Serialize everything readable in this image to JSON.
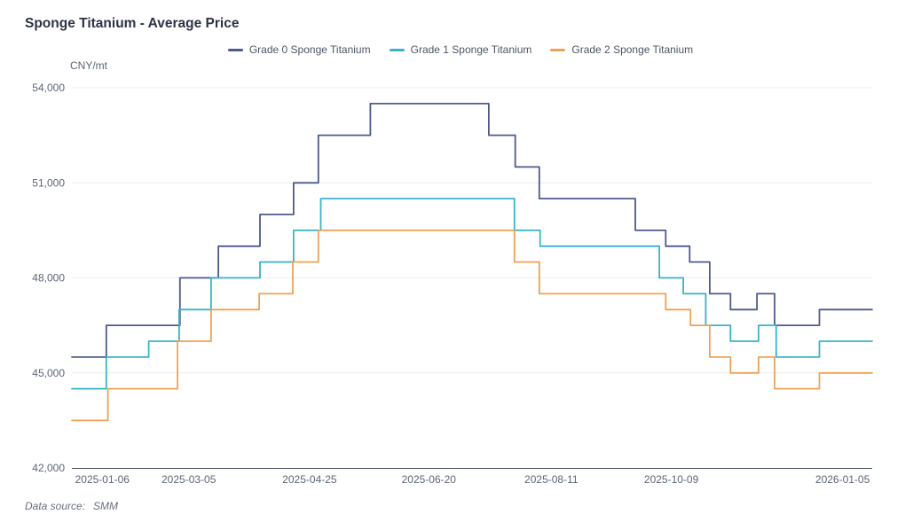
{
  "header": {
    "title": "Sponge Titanium - Average Price"
  },
  "legend": {
    "items": [
      {
        "label": "Grade 0 Sponge Titanium",
        "color": "#4d5a8c"
      },
      {
        "label": "Grade 1 Sponge Titanium",
        "color": "#38b4c8"
      },
      {
        "label": "Grade 2 Sponge Titanium",
        "color": "#f0a155"
      }
    ]
  },
  "footer": {
    "label": "Data source:",
    "value": "SMM"
  },
  "chart_data": {
    "type": "line",
    "step": true,
    "title": "Sponge Titanium - Average Price",
    "unit_label": "CNY/mt",
    "ylabel": "CNY/mt",
    "xlabel": "",
    "ylim": [
      42000,
      54000
    ],
    "grid": true,
    "legend_position": "top-center",
    "x_range": [
      "2025-01-06",
      "2026-01-05"
    ],
    "y_ticks": [
      {
        "value": 54000,
        "label": "54,000"
      },
      {
        "value": 51000,
        "label": "51,000"
      },
      {
        "value": 48000,
        "label": "48,000"
      },
      {
        "value": 45000,
        "label": "45,000"
      },
      {
        "value": 42000,
        "label": "42,000"
      }
    ],
    "x_ticks": [
      {
        "label": "2025-01-06",
        "pos": 0.038
      },
      {
        "label": "2025-03-05",
        "pos": 0.146
      },
      {
        "label": "2025-04-25",
        "pos": 0.297
      },
      {
        "label": "2025-06-20",
        "pos": 0.446
      },
      {
        "label": "2025-08-11",
        "pos": 0.599
      },
      {
        "label": "2025-10-09",
        "pos": 0.749
      },
      {
        "label": "2026-01-05",
        "pos": 0.963
      }
    ],
    "segments_format": "[x_start_fraction_of_axis, x_end_fraction_of_axis, price_cny_per_mt]",
    "series": [
      {
        "name": "Grade 0 Sponge Titanium",
        "color": "#4d5a8c",
        "segments": [
          [
            0.0,
            0.043,
            45500
          ],
          [
            0.043,
            0.135,
            46500
          ],
          [
            0.135,
            0.183,
            48000
          ],
          [
            0.183,
            0.235,
            49000
          ],
          [
            0.235,
            0.277,
            50000
          ],
          [
            0.277,
            0.308,
            51000
          ],
          [
            0.308,
            0.373,
            52500
          ],
          [
            0.373,
            0.521,
            53500
          ],
          [
            0.521,
            0.554,
            52500
          ],
          [
            0.554,
            0.584,
            51500
          ],
          [
            0.584,
            0.704,
            50500
          ],
          [
            0.704,
            0.742,
            49500
          ],
          [
            0.742,
            0.772,
            49000
          ],
          [
            0.772,
            0.797,
            48500
          ],
          [
            0.797,
            0.823,
            47500
          ],
          [
            0.823,
            0.856,
            47000
          ],
          [
            0.856,
            0.878,
            47500
          ],
          [
            0.878,
            0.934,
            46500
          ],
          [
            0.934,
            1.0,
            47000
          ]
        ]
      },
      {
        "name": "Grade 1 Sponge Titanium",
        "color": "#38b4c8",
        "segments": [
          [
            0.0,
            0.043,
            44500
          ],
          [
            0.043,
            0.096,
            45500
          ],
          [
            0.096,
            0.134,
            46000
          ],
          [
            0.134,
            0.174,
            47000
          ],
          [
            0.174,
            0.235,
            48000
          ],
          [
            0.235,
            0.277,
            48500
          ],
          [
            0.277,
            0.311,
            49500
          ],
          [
            0.311,
            0.553,
            50500
          ],
          [
            0.553,
            0.585,
            49500
          ],
          [
            0.585,
            0.734,
            49000
          ],
          [
            0.734,
            0.764,
            48000
          ],
          [
            0.764,
            0.792,
            47500
          ],
          [
            0.792,
            0.823,
            46500
          ],
          [
            0.823,
            0.858,
            46000
          ],
          [
            0.858,
            0.88,
            46500
          ],
          [
            0.88,
            0.934,
            45500
          ],
          [
            0.934,
            1.0,
            46000
          ]
        ]
      },
      {
        "name": "Grade 2 Sponge Titanium",
        "color": "#f0a155",
        "segments": [
          [
            0.0,
            0.045,
            43500
          ],
          [
            0.045,
            0.132,
            44500
          ],
          [
            0.132,
            0.174,
            46000
          ],
          [
            0.174,
            0.234,
            47000
          ],
          [
            0.234,
            0.276,
            47500
          ],
          [
            0.276,
            0.308,
            48500
          ],
          [
            0.308,
            0.553,
            49500
          ],
          [
            0.553,
            0.584,
            48500
          ],
          [
            0.584,
            0.742,
            47500
          ],
          [
            0.742,
            0.773,
            47000
          ],
          [
            0.773,
            0.797,
            46500
          ],
          [
            0.797,
            0.823,
            45500
          ],
          [
            0.823,
            0.858,
            45000
          ],
          [
            0.858,
            0.878,
            45500
          ],
          [
            0.878,
            0.934,
            44500
          ],
          [
            0.934,
            1.0,
            45000
          ]
        ]
      }
    ]
  }
}
